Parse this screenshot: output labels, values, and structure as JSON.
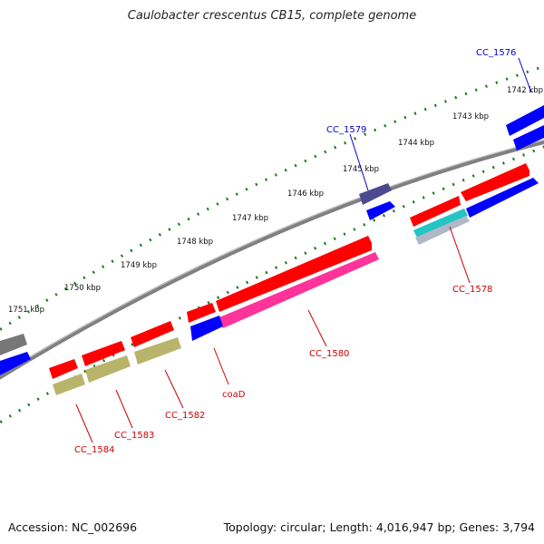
{
  "title": "Caulobacter crescentus CB15, complete genome",
  "footer": {
    "accession": "Accession: NC_002696",
    "stats": "Topology: circular; Length: 4,016,947 bp; Genes: 3,794"
  },
  "scale_labels": [
    "1742 kbp",
    "1743 kbp",
    "1744 kbp",
    "1745 kbp",
    "1746 kbp",
    "1747 kbp",
    "1748 kbp",
    "1749 kbp",
    "1750 kbp",
    "1751 kbp"
  ],
  "gene_labels": {
    "top": [
      {
        "text": "CC_1576",
        "color": "#0000cc"
      },
      {
        "text": "CC_1579",
        "color": "#0000cc"
      }
    ],
    "bottom": [
      {
        "text": "CC_1578",
        "color": "#cc0000"
      },
      {
        "text": "CC_1580",
        "color": "#cc0000"
      },
      {
        "text": "coaD",
        "color": "#cc0000"
      },
      {
        "text": "CC_1582",
        "color": "#cc0000"
      },
      {
        "text": "CC_1583",
        "color": "#cc0000"
      },
      {
        "text": "CC_1584",
        "color": "#cc0000"
      }
    ]
  },
  "colors": {
    "backbone": "#808080",
    "scale_dots": "#1a7a1a",
    "red": "#ff0000",
    "blue": "#0000ff",
    "olive": "#b8b46a",
    "pink": "#ff3399",
    "cyan": "#22c4c4",
    "slate": "#4a4a8c",
    "grey": "#777777"
  }
}
